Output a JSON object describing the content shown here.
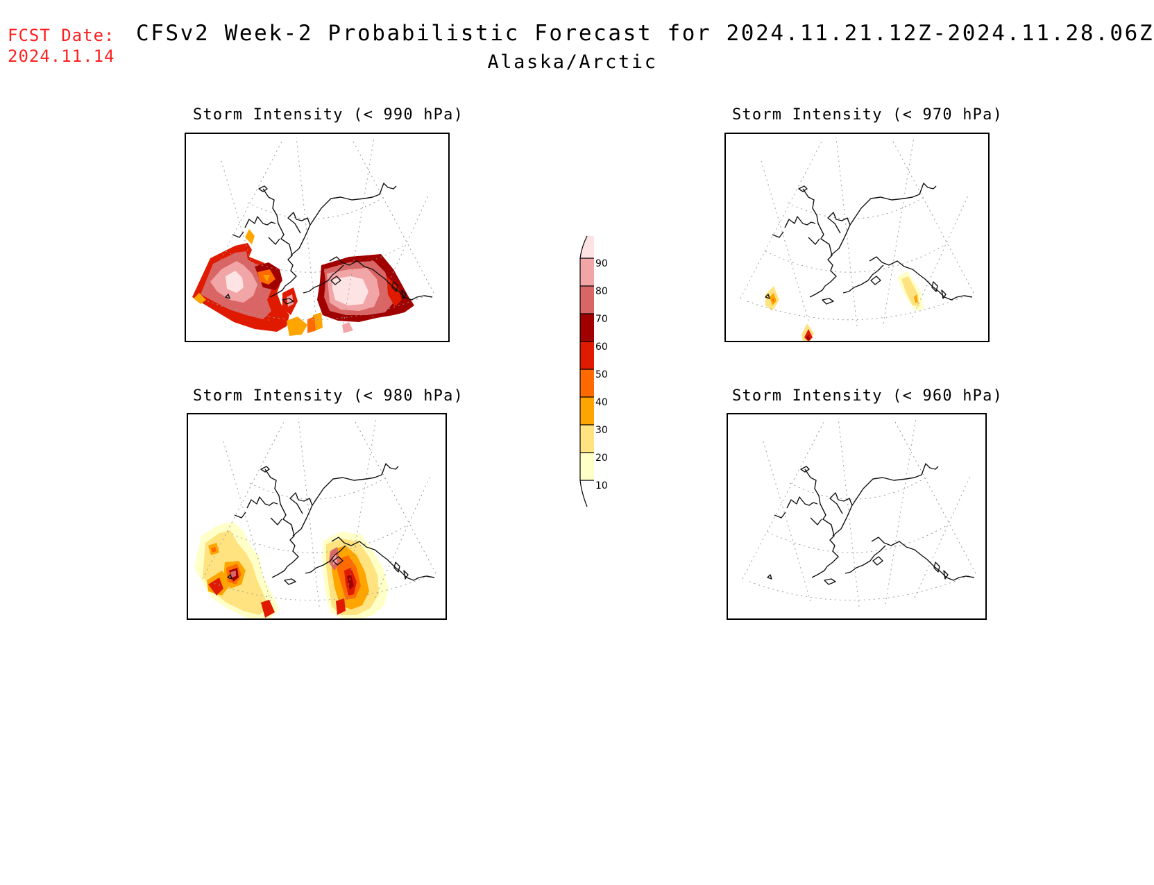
{
  "header": {
    "fcst_label": "FCST Date:",
    "fcst_date": "2024.11.14",
    "title": "CFSv2 Week-2 Probabilistic Forecast for 2024.11.21.12Z-2024.11.28.06Z",
    "subtitle": "Alaska/Arctic"
  },
  "panels": [
    {
      "title": "Storm Intensity (< 990 hPa)"
    },
    {
      "title": "Storm Intensity (< 970 hPa)"
    },
    {
      "title": "Storm Intensity (< 980 hPa)"
    },
    {
      "title": "Storm Intensity (< 960 hPa)"
    }
  ],
  "colorbar": {
    "labels": [
      "90",
      "80",
      "70",
      "60",
      "50",
      "40",
      "30",
      "20",
      "10"
    ],
    "colors": [
      "#fde3e4",
      "#f2a5a6",
      "#d96565",
      "#a00000",
      "#e01a00",
      "#ff6a00",
      "#ffa500",
      "#ffe380",
      "#ffffc8"
    ]
  },
  "colors": {
    "fcst_text": "#ff2020"
  }
}
